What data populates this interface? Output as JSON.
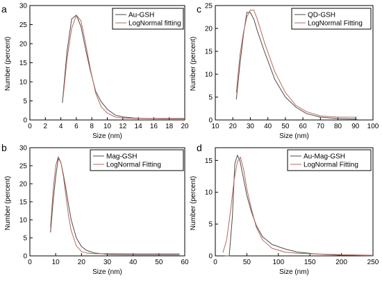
{
  "chart_data": [
    {
      "panel": "a",
      "type": "line",
      "xlabel": "Size (nm)",
      "ylabel": "Number (percent)",
      "xlim": [
        0,
        20
      ],
      "ylim": [
        0,
        30
      ],
      "xticks": [
        0,
        2,
        4,
        6,
        8,
        10,
        12,
        14,
        16,
        18,
        20
      ],
      "yticks": [
        0,
        5,
        10,
        15,
        20,
        25,
        30
      ],
      "grid": false,
      "legend_position": "top-right",
      "series": [
        {
          "name": "Au-GSH",
          "color": "#4a4a4a",
          "x": [
            4.2,
            4.8,
            5.4,
            6.0,
            6.6,
            7.2,
            7.8,
            8.5,
            9.2,
            10.0,
            11.0,
            12.0,
            13.5,
            15.0,
            17.0,
            20.0
          ],
          "y": [
            4.5,
            18,
            26.5,
            27.5,
            24.5,
            18.5,
            13,
            7.5,
            4.8,
            2.8,
            1.3,
            0.8,
            0.5,
            0.4,
            0.3,
            0.3
          ]
        },
        {
          "name": "LogNormal fitting",
          "color": "#b5685e",
          "x": [
            4.3,
            4.8,
            5.4,
            6.0,
            6.6,
            7.2,
            7.8,
            8.5,
            9.2,
            10.0,
            11.0,
            12.0,
            13.5,
            15.0,
            17.0,
            20.0
          ],
          "y": [
            6,
            16,
            24,
            27.5,
            26,
            20,
            13.5,
            7,
            3.5,
            1.8,
            0.8,
            0.5,
            0.4,
            0.4,
            0.4,
            0.4
          ]
        }
      ]
    },
    {
      "panel": "c",
      "type": "line",
      "xlabel": "Size (nm)",
      "ylabel": "Number (percent)",
      "xlim": [
        10,
        100
      ],
      "ylim": [
        0,
        25
      ],
      "xticks": [
        10,
        20,
        30,
        40,
        50,
        60,
        70,
        80,
        90,
        100
      ],
      "yticks": [
        0,
        5,
        10,
        15,
        20,
        25
      ],
      "grid": false,
      "legend_position": "top-right",
      "series": [
        {
          "name": "QD-GSH",
          "color": "#4a4a4a",
          "x": [
            22,
            24,
            26,
            28,
            30,
            32,
            34,
            38,
            44,
            50,
            56,
            62,
            70,
            80,
            91
          ],
          "y": [
            4.5,
            12,
            18.5,
            23.5,
            23.5,
            22,
            19.5,
            15,
            8.8,
            5,
            2.8,
            1.4,
            0.6,
            0.3,
            0.2
          ]
        },
        {
          "name": "LogNormal Fitting",
          "color": "#b5685e",
          "x": [
            22,
            24,
            26,
            28,
            30,
            32,
            34,
            38,
            44,
            50,
            56,
            62,
            70,
            80,
            91
          ],
          "y": [
            6,
            14,
            19,
            22.5,
            24,
            24,
            22,
            17,
            10.5,
            6,
            3.2,
            1.8,
            0.9,
            0.6,
            0.6
          ]
        }
      ]
    },
    {
      "panel": "b",
      "type": "line",
      "xlabel": "Size (nm)",
      "ylabel": "Number (percent)",
      "xlim": [
        0,
        60
      ],
      "ylim": [
        0,
        30
      ],
      "xticks": [
        0,
        10,
        20,
        30,
        40,
        50,
        60
      ],
      "yticks": [
        0,
        5,
        10,
        15,
        20,
        25,
        30
      ],
      "grid": false,
      "legend_position": "top-right",
      "series": [
        {
          "name": "Mag-GSH",
          "color": "#4a4a4a",
          "x": [
            8,
            9,
            10,
            11,
            12,
            13,
            14,
            15,
            16,
            18,
            20,
            22,
            25,
            30,
            40,
            58
          ],
          "y": [
            6.5,
            15,
            22,
            27,
            26,
            22.5,
            18.5,
            14,
            10,
            5,
            2.6,
            1.5,
            0.8,
            0.4,
            0.3,
            0.3
          ]
        },
        {
          "name": "LogNormal Fitting",
          "color": "#b5685e",
          "x": [
            8,
            9,
            10,
            11,
            12,
            13,
            14,
            15,
            16,
            18,
            20,
            22,
            25,
            30,
            40,
            58
          ],
          "y": [
            8,
            18,
            25,
            27.5,
            26,
            22,
            16.5,
            11,
            7,
            2.8,
            1.2,
            0.8,
            0.6,
            0.6,
            0.6,
            0.6
          ]
        }
      ]
    },
    {
      "panel": "d",
      "type": "line",
      "xlabel": "Size (nm)",
      "ylabel": "Number (percent)",
      "xlim": [
        0,
        250
      ],
      "ylim": [
        0,
        17
      ],
      "xticks": [
        0,
        50,
        100,
        150,
        200,
        250
      ],
      "yticks": [
        0,
        5,
        10,
        15
      ],
      "grid": false,
      "legend_position": "top-right",
      "series": [
        {
          "name": "Au-Mag-GSH",
          "color": "#4a4a4a",
          "x": [
            15,
            22,
            27,
            31,
            35,
            39,
            44,
            50,
            57,
            65,
            75,
            90,
            110,
            130,
            160,
            200,
            250
          ],
          "y": [
            0,
            0,
            6,
            14.5,
            15.8,
            15,
            12.5,
            9.5,
            7,
            4.8,
            3,
            1.8,
            1.1,
            0.6,
            0.3,
            0.1,
            0
          ]
        },
        {
          "name": "LogNormal Fitting",
          "color": "#b5685e",
          "x": [
            12,
            18,
            24,
            30,
            35,
            40,
            45,
            50,
            57,
            65,
            75,
            90,
            110,
            130,
            160,
            200,
            250
          ],
          "y": [
            0.5,
            2.5,
            7,
            12,
            14.8,
            15.5,
            13.5,
            10.5,
            7.5,
            4.5,
            2.5,
            1.2,
            0.6,
            0.4,
            0.3,
            0.2,
            0.1
          ]
        }
      ]
    }
  ],
  "panel_letters": {
    "a": "a",
    "b": "b",
    "c": "c",
    "d": "d"
  }
}
